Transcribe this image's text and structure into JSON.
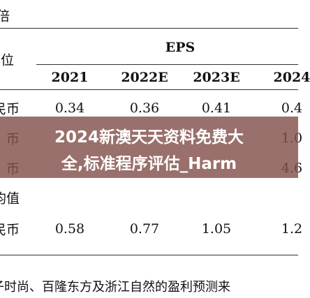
{
  "header": {
    "top_label": "倍",
    "unit_label": "位",
    "group": "EPS",
    "columns": [
      "2021",
      "2022E",
      "2023E",
      "2024"
    ]
  },
  "table": {
    "rows": [
      [
        "民币",
        "0.34",
        "0.36",
        "0.41",
        "0.4"
      ],
      [
        "币",
        "",
        "",
        "",
        "1.0"
      ],
      [
        "币",
        "",
        "",
        "",
        "4.6"
      ],
      [
        "均值",
        "",
        "",
        "",
        ""
      ],
      [
        "民币",
        "0.58",
        "0.77",
        "1.05",
        "1.2"
      ]
    ]
  },
  "footnote": "子时尚、百隆东方及浙江自然的盈利预测来",
  "banner": [
    "2024新澳天天资料免费大",
    "全,标准程序评估_Harm"
  ]
}
